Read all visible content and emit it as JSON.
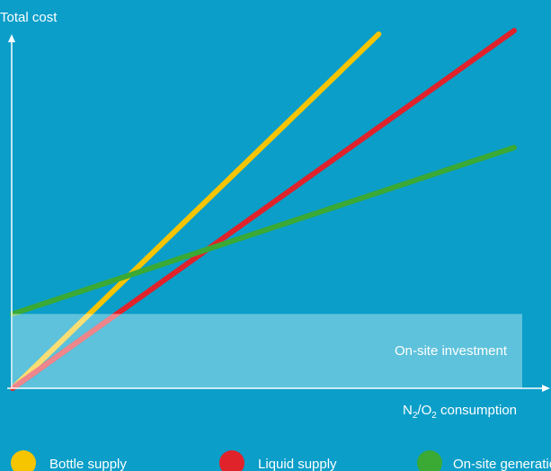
{
  "chart_data": {
    "type": "line",
    "title": "",
    "ylabel": "Total cost",
    "xlabel": {
      "part1": "N",
      "sub1": "2",
      "part2": "/O",
      "sub2": "2",
      "part3": " consumption"
    },
    "xlim": [
      0,
      100
    ],
    "ylim": [
      0,
      100
    ],
    "grid": false,
    "legend_position": "bottom",
    "annotation": {
      "label": "On-site investment",
      "y_top": 21
    },
    "series": [
      {
        "name": "Bottle supply",
        "color": "#f7c400",
        "x": [
          0,
          73
        ],
        "y": [
          0,
          100
        ]
      },
      {
        "name": "Liquid  supply",
        "color": "#e0222b",
        "x": [
          0,
          100
        ],
        "y": [
          0,
          101
        ]
      },
      {
        "name": "On-site generation",
        "color": "#3aaa35",
        "x": [
          0,
          100
        ],
        "y": [
          21,
          68
        ]
      }
    ]
  }
}
